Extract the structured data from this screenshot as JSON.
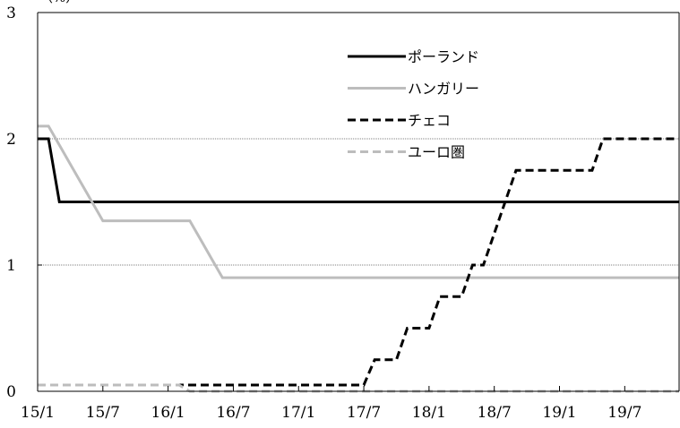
{
  "chart_data": {
    "type": "line",
    "ylabel_unit": "（%）",
    "ylim": [
      0,
      3
    ],
    "yticks": [
      0,
      1,
      2,
      3
    ],
    "xlim": [
      "2015-01",
      "2019-12"
    ],
    "xticks": [
      "2015-01",
      "2015-07",
      "2016-01",
      "2016-07",
      "2017-01",
      "2017-07",
      "2018-01",
      "2018-07",
      "2019-01",
      "2019-07"
    ],
    "xtick_labels": [
      "15/1",
      "15/7",
      "16/1",
      "16/7",
      "17/1",
      "17/7",
      "18/1",
      "18/7",
      "19/1",
      "19/7"
    ],
    "grid": "horizontal dotted lines at 1 and 2",
    "legend_position": "upper-center-right",
    "series": [
      {
        "name": "ポーランド",
        "color": "#000000",
        "style": "solid",
        "points": [
          [
            "2015-01",
            2.0
          ],
          [
            "2015-02",
            2.0
          ],
          [
            "2015-03",
            1.5
          ],
          [
            "2019-12",
            1.5
          ]
        ]
      },
      {
        "name": "ハンガリー",
        "color": "#bdbdbd",
        "style": "solid",
        "points": [
          [
            "2015-01",
            2.1
          ],
          [
            "2015-02",
            2.1
          ],
          [
            "2015-03",
            1.95
          ],
          [
            "2015-04",
            1.8
          ],
          [
            "2015-05",
            1.65
          ],
          [
            "2015-06",
            1.5
          ],
          [
            "2015-07",
            1.35
          ],
          [
            "2016-03",
            1.35
          ],
          [
            "2016-04",
            1.2
          ],
          [
            "2016-05",
            1.05
          ],
          [
            "2016-06",
            0.9
          ],
          [
            "2019-12",
            0.9
          ]
        ]
      },
      {
        "name": "チェコ",
        "color": "#000000",
        "style": "dashed",
        "points": [
          [
            "2015-01",
            0.05
          ],
          [
            "2017-07",
            0.05
          ],
          [
            "2017-08",
            0.25
          ],
          [
            "2017-10",
            0.25
          ],
          [
            "2017-11",
            0.5
          ],
          [
            "2018-01",
            0.5
          ],
          [
            "2018-02",
            0.75
          ],
          [
            "2018-04",
            0.75
          ],
          [
            "2018-05",
            1.0
          ],
          [
            "2018-06",
            1.0
          ],
          [
            "2018-07",
            1.25
          ],
          [
            "2018-08",
            1.5
          ],
          [
            "2018-09",
            1.75
          ],
          [
            "2019-04",
            1.75
          ],
          [
            "2019-05",
            2.0
          ],
          [
            "2019-12",
            2.0
          ]
        ]
      },
      {
        "name": "ユーロ圏",
        "color": "#bdbdbd",
        "style": "dashed",
        "points": [
          [
            "2015-01",
            0.05
          ],
          [
            "2016-02",
            0.05
          ],
          [
            "2016-03",
            0.0
          ],
          [
            "2019-12",
            0.0
          ]
        ]
      }
    ]
  }
}
